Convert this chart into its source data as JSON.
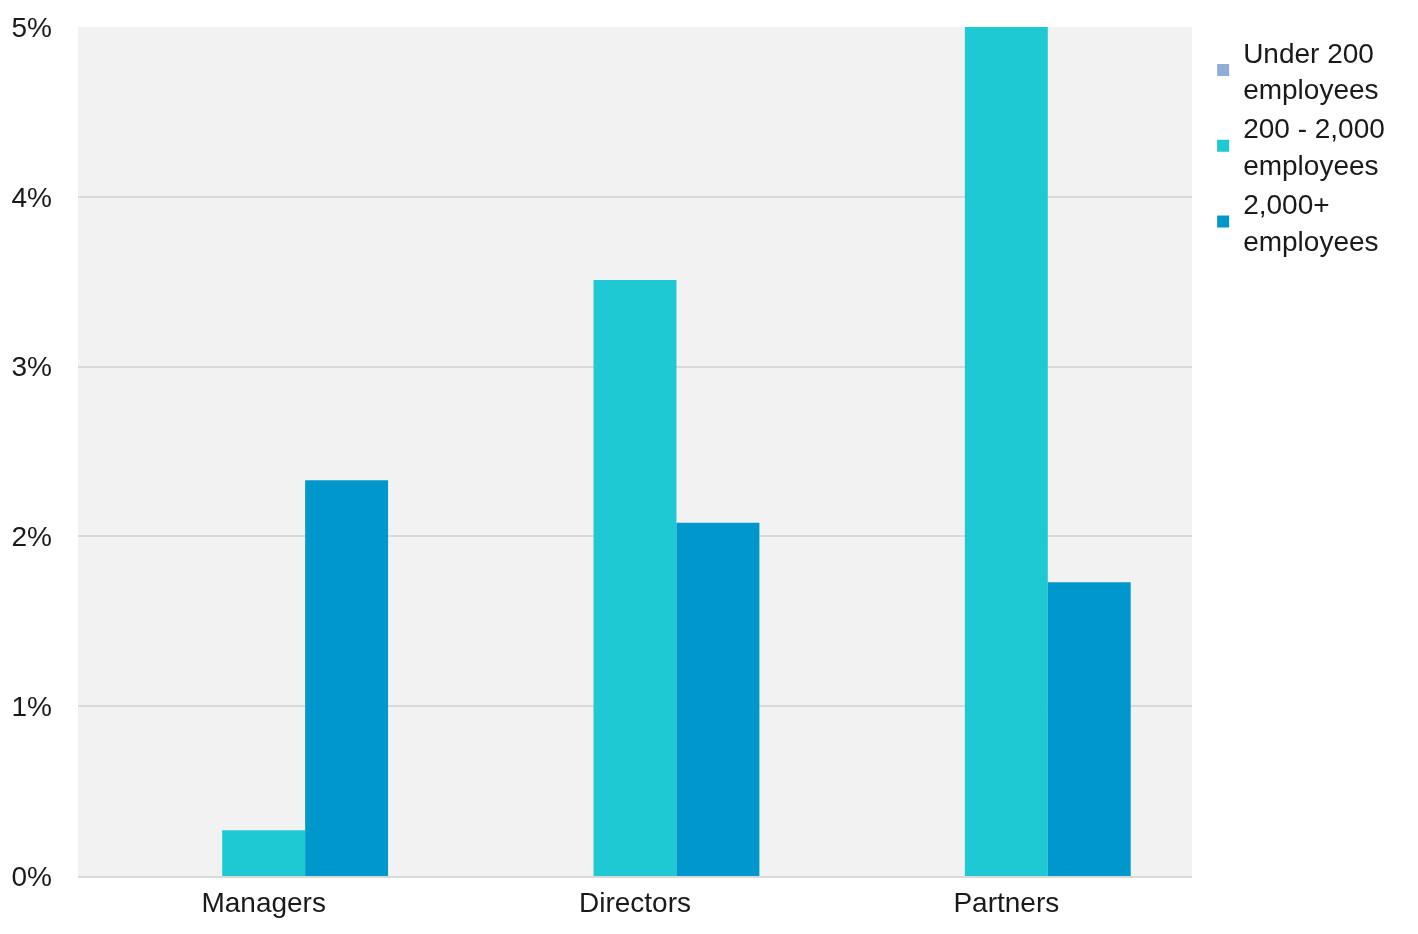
{
  "chart_data": {
    "type": "bar",
    "categories": [
      "Managers",
      "Directors",
      "Partners"
    ],
    "series": [
      {
        "name": "Under 200 employees",
        "color": "#8faed6",
        "values": [
          0,
          0,
          0
        ]
      },
      {
        "name": "200 - 2,000 employees",
        "color": "#1fc9d4",
        "values": [
          0.27,
          3.51,
          5.0
        ]
      },
      {
        "name": "2,000+ employees",
        "color": "#0098cc",
        "values": [
          2.33,
          2.08,
          1.73
        ]
      }
    ],
    "ylim": [
      0,
      5
    ],
    "yticks": [
      {
        "value": 0,
        "label": "0%"
      },
      {
        "value": 1,
        "label": "1%"
      },
      {
        "value": 2,
        "label": "2%"
      },
      {
        "value": 3,
        "label": "3%"
      },
      {
        "value": 4,
        "label": "4%"
      },
      {
        "value": 5,
        "label": "5%"
      }
    ],
    "grid": "y",
    "legend": "top right"
  }
}
